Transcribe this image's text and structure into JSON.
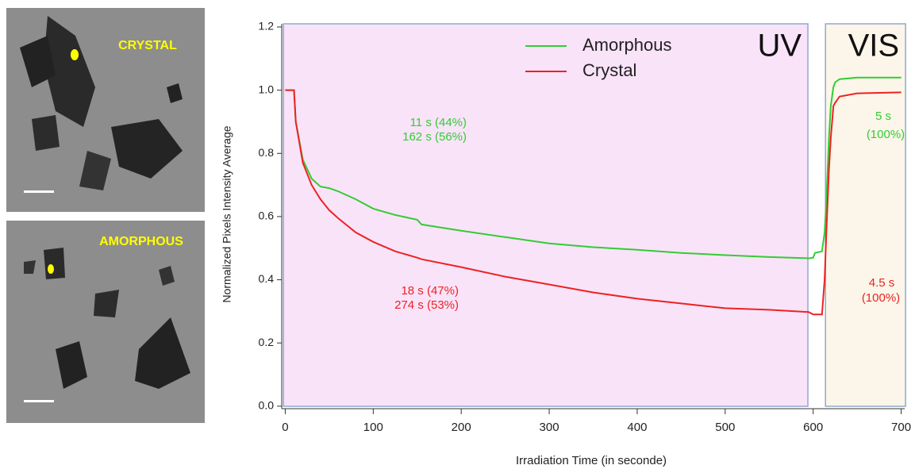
{
  "images": [
    {
      "label": "CRYSTAL"
    },
    {
      "label": "AMORPHOUS"
    }
  ],
  "chart_data": {
    "type": "line",
    "xlabel": "Irradiation Time (in seconde)",
    "ylabel": "Normalized Pixels Intensity Average",
    "xlim": [
      -4,
      704
    ],
    "ylim": [
      -0.008,
      1.21
    ],
    "xticks": [
      0,
      100,
      200,
      300,
      400,
      500,
      600,
      700
    ],
    "yticks": [
      {
        "value": 0,
        "label": "0.0"
      },
      0.2,
      0.4,
      0.6,
      0.8,
      {
        "value": 1,
        "label": "1.0"
      },
      1.2
    ],
    "regions": [
      {
        "label": "UV",
        "x": [
          -2,
          594
        ],
        "color": "#f9e3f9"
      },
      {
        "label": "VIS",
        "x": [
          614,
          705
        ],
        "color": "#fbf6e9"
      }
    ],
    "legend": "top",
    "x": [
      0,
      10,
      12,
      20,
      30,
      40,
      50,
      60,
      80,
      100,
      125,
      150,
      155,
      200,
      250,
      300,
      350,
      400,
      450,
      500,
      550,
      595,
      600,
      602,
      610,
      613,
      615,
      618,
      620,
      623,
      625,
      630,
      650,
      700
    ],
    "series": [
      {
        "name": "Amorphous",
        "color": "#33cc33",
        "values": [
          1.0,
          1.0,
          0.9,
          0.78,
          0.72,
          0.695,
          0.69,
          0.68,
          0.655,
          0.625,
          0.605,
          0.59,
          0.575,
          0.555,
          0.535,
          0.515,
          0.503,
          0.495,
          0.485,
          0.478,
          0.472,
          0.468,
          0.47,
          0.485,
          0.49,
          0.55,
          0.65,
          0.85,
          0.95,
          1.01,
          1.025,
          1.035,
          1.04,
          1.04
        ]
      },
      {
        "name": "Crystal",
        "color": "#ee2222",
        "values": [
          1.0,
          1.0,
          0.9,
          0.77,
          0.7,
          0.655,
          0.62,
          0.595,
          0.55,
          0.52,
          0.49,
          0.47,
          0.465,
          0.44,
          0.41,
          0.385,
          0.36,
          0.34,
          0.325,
          0.31,
          0.305,
          0.298,
          0.29,
          0.29,
          0.29,
          0.4,
          0.55,
          0.75,
          0.85,
          0.95,
          0.96,
          0.98,
          0.99,
          0.993
        ]
      }
    ],
    "annotations": [
      {
        "text": "11 s  (44%)",
        "color": "#33cc33"
      },
      {
        "text": "162 s  (56%)",
        "color": "#33cc33"
      },
      {
        "text": "18 s  (47%)",
        "color": "#ee2222"
      },
      {
        "text": "274 s  (53%)",
        "color": "#ee2222"
      },
      {
        "text": "5 s",
        "color": "#33cc33"
      },
      {
        "text": "(100%)",
        "color": "#33cc33"
      },
      {
        "text": "4.5 s",
        "color": "#ee2222"
      },
      {
        "text": "(100%)",
        "color": "#ee2222"
      }
    ]
  }
}
